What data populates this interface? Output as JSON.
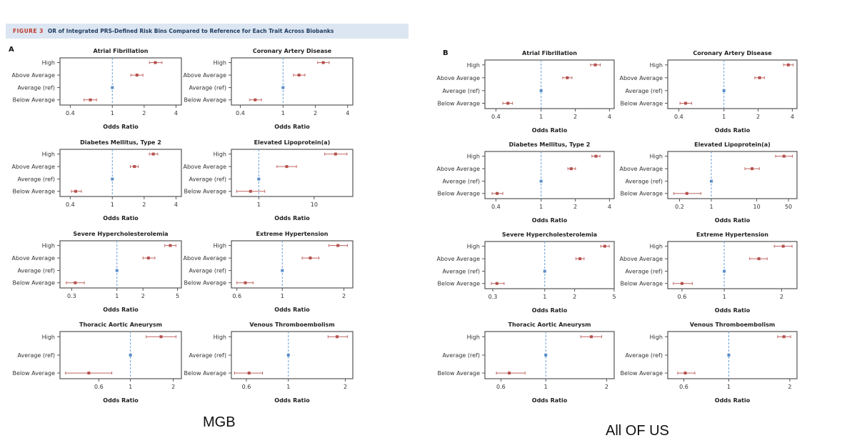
{
  "header": {
    "figure_label": "FIGURE 3",
    "title": "OR of Integrated PRS-Defined Risk Bins Compared to Reference for Each Trait Across Biobanks"
  },
  "panels": {
    "a": "A",
    "b": "B"
  },
  "captions": {
    "a": "MGB",
    "b": "All OF US"
  },
  "colors": {
    "point": "#b5504d",
    "ci": "#c06663",
    "reference": "#5b8ec9",
    "ref_line": "#6b9fd6",
    "header_bg": "#dce6f2"
  },
  "chart_data": [
    {
      "panel": "A",
      "type": "forest",
      "title": "Atrial Fibrillation",
      "xlabel": "Odds Ratio",
      "xscale": "log",
      "xlim": [
        0.32,
        4.5
      ],
      "xticks": [
        "0.4",
        "1",
        "2",
        "4"
      ],
      "rows": [
        {
          "label": "High",
          "or": 2.55,
          "lo": 2.24,
          "hi": 2.95
        },
        {
          "label": "Above Average",
          "or": 1.71,
          "lo": 1.5,
          "hi": 1.95
        },
        {
          "label": "Average (ref)",
          "or": 1
        },
        {
          "label": "Below Average",
          "or": 0.62,
          "lo": 0.54,
          "hi": 0.71
        }
      ]
    },
    {
      "panel": "A",
      "type": "forest",
      "title": "Coronary Artery Disease",
      "xlabel": "Odds Ratio",
      "xscale": "log",
      "xlim": [
        0.33,
        4.47
      ],
      "xticks": [
        "0.4",
        "1",
        "2",
        "4"
      ],
      "rows": [
        {
          "label": "High",
          "or": 2.37,
          "lo": 2.1,
          "hi": 2.69
        },
        {
          "label": "Above Average",
          "or": 1.41,
          "lo": 1.25,
          "hi": 1.6
        },
        {
          "label": "Average (ref)",
          "or": 1
        },
        {
          "label": "Below Average",
          "or": 0.55,
          "lo": 0.49,
          "hi": 0.63
        }
      ]
    },
    {
      "panel": "A",
      "type": "forest",
      "title": "Diabetes Mellitus, Type 2",
      "xlabel": "Odds Ratio",
      "xscale": "log",
      "xlim": [
        0.32,
        4.5
      ],
      "xticks": [
        "0.4",
        "1",
        "2",
        "4"
      ],
      "rows": [
        {
          "label": "High",
          "or": 2.44,
          "lo": 2.24,
          "hi": 2.69
        },
        {
          "label": "Above Average",
          "or": 1.62,
          "lo": 1.48,
          "hi": 1.76
        },
        {
          "label": "Average (ref)",
          "or": 1
        },
        {
          "label": "Below Average",
          "or": 0.45,
          "lo": 0.41,
          "hi": 0.51
        }
      ]
    },
    {
      "panel": "A",
      "type": "forest",
      "title": "Elevated Lipoprotein(a)",
      "xlabel": "Odds Ratio",
      "xscale": "log",
      "xlim": [
        0.32,
        50
      ],
      "xticks": [
        "1",
        "10"
      ],
      "rows": [
        {
          "label": "High",
          "or": 24.4,
          "lo": 15.5,
          "hi": 39.3
        },
        {
          "label": "Above Average",
          "or": 3.2,
          "lo": 2.13,
          "hi": 4.8
        },
        {
          "label": "Average (ref)",
          "or": 1
        },
        {
          "label": "Below Average",
          "or": 0.71,
          "lo": 0.4,
          "hi": 1.28
        }
      ]
    },
    {
      "panel": "A",
      "type": "forest",
      "title": "Severe Hypercholesterolemia",
      "xlabel": "Odds Ratio",
      "xscale": "log",
      "xlim": [
        0.22,
        5.55
      ],
      "xticks": [
        "0.3",
        "1",
        "2",
        "5"
      ],
      "rows": [
        {
          "label": "High",
          "or": 4.13,
          "lo": 3.57,
          "hi": 4.8
        },
        {
          "label": "Above Average",
          "or": 2.31,
          "lo": 2.0,
          "hi": 2.74
        },
        {
          "label": "Average (ref)",
          "or": 1
        },
        {
          "label": "Below Average",
          "or": 0.33,
          "lo": 0.26,
          "hi": 0.42
        }
      ]
    },
    {
      "panel": "A",
      "type": "forest",
      "title": "Extreme Hypertension",
      "xlabel": "Odds Ratio",
      "xscale": "log",
      "xlim": [
        0.564,
        2.21
      ],
      "xticks": [
        "0.6",
        "1",
        "2"
      ],
      "rows": [
        {
          "label": "High",
          "or": 1.87,
          "lo": 1.69,
          "hi": 2.08
        },
        {
          "label": "Above Average",
          "or": 1.37,
          "lo": 1.25,
          "hi": 1.51
        },
        {
          "label": "Average (ref)",
          "or": 1
        },
        {
          "label": "Below Average",
          "or": 0.66,
          "lo": 0.6,
          "hi": 0.72
        }
      ]
    },
    {
      "panel": "A",
      "type": "forest",
      "title": "Thoracic Aortic Aneurysm",
      "xlabel": "Odds Ratio",
      "xscale": "log",
      "xlim": [
        0.32,
        2.28
      ],
      "xticks": [
        "0.6",
        "1",
        "2"
      ],
      "rows": [
        {
          "label": "High",
          "or": 1.64,
          "lo": 1.29,
          "hi": 2.09
        },
        {
          "label": "Average (ref)",
          "or": 1
        },
        {
          "label": "Below Average",
          "or": 0.51,
          "lo": 0.35,
          "hi": 0.74
        }
      ]
    },
    {
      "panel": "A",
      "type": "forest",
      "title": "Venous Thromboembolism",
      "xlabel": "Odds Ratio",
      "xscale": "log",
      "xlim": [
        0.5,
        2.19
      ],
      "xticks": [
        "0.6",
        "1",
        "2"
      ],
      "rows": [
        {
          "label": "High",
          "or": 1.81,
          "lo": 1.62,
          "hi": 2.05
        },
        {
          "label": "Average (ref)",
          "or": 1
        },
        {
          "label": "Below Average",
          "or": 0.62,
          "lo": 0.52,
          "hi": 0.73
        }
      ]
    },
    {
      "panel": "B",
      "type": "forest",
      "title": "Atrial Fibrillation",
      "xlabel": "Odds Ratio",
      "xscale": "log",
      "xlim": [
        0.32,
        4.4
      ],
      "xticks": [
        "0.4",
        "1",
        "2",
        "4"
      ],
      "rows": [
        {
          "label": "High",
          "or": 3.0,
          "lo": 2.72,
          "hi": 3.32
        },
        {
          "label": "Above Average",
          "or": 1.7,
          "lo": 1.55,
          "hi": 1.87
        },
        {
          "label": "Average (ref)",
          "or": 1
        },
        {
          "label": "Below Average",
          "or": 0.51,
          "lo": 0.46,
          "hi": 0.56
        }
      ]
    },
    {
      "panel": "B",
      "type": "forest",
      "title": "Coronary Artery Disease",
      "xlabel": "Odds Ratio",
      "xscale": "log",
      "xlim": [
        0.32,
        4.4
      ],
      "xticks": [
        "0.4",
        "1",
        "2",
        "4"
      ],
      "rows": [
        {
          "label": "High",
          "or": 3.69,
          "lo": 3.35,
          "hi": 4.07
        },
        {
          "label": "Above Average",
          "or": 2.06,
          "lo": 1.87,
          "hi": 2.27
        },
        {
          "label": "Average (ref)",
          "or": 1
        },
        {
          "label": "Below Average",
          "or": 0.46,
          "lo": 0.41,
          "hi": 0.52
        }
      ]
    },
    {
      "panel": "B",
      "type": "forest",
      "title": "Diabetes Mellitus, Type 2",
      "xlabel": "Odds Ratio",
      "xscale": "log",
      "xlim": [
        0.32,
        4.4
      ],
      "xticks": [
        "0.4",
        "1",
        "2",
        "4"
      ],
      "rows": [
        {
          "label": "High",
          "or": 3.04,
          "lo": 2.8,
          "hi": 3.3
        },
        {
          "label": "Above Average",
          "or": 1.84,
          "lo": 1.72,
          "hi": 2.01
        },
        {
          "label": "Average (ref)",
          "or": 1
        },
        {
          "label": "Below Average",
          "or": 0.41,
          "lo": 0.37,
          "hi": 0.46
        }
      ]
    },
    {
      "panel": "B",
      "type": "forest",
      "title": "Elevated Lipoprotein(a)",
      "xlabel": "Odds Ratio",
      "xscale": "log",
      "xlim": [
        0.11,
        77
      ],
      "xticks": [
        "0.2",
        "1",
        "10",
        "50"
      ],
      "rows": [
        {
          "label": "High",
          "or": 39.8,
          "lo": 26,
          "hi": 61
        },
        {
          "label": "Above Average",
          "or": 7.9,
          "lo": 5.5,
          "hi": 11.4
        },
        {
          "label": "Average (ref)",
          "or": 1
        },
        {
          "label": "Below Average",
          "or": 0.29,
          "lo": 0.15,
          "hi": 0.59
        }
      ]
    },
    {
      "panel": "B",
      "type": "forest",
      "title": "Severe Hypercholesterolemia",
      "xlabel": "Odds Ratio",
      "xscale": "log",
      "xlim": [
        0.25,
        5.0
      ],
      "xticks": [
        "0.3",
        "1",
        "2",
        "5"
      ],
      "rows": [
        {
          "label": "High",
          "or": 4.02,
          "lo": 3.66,
          "hi": 4.46
        },
        {
          "label": "Above Average",
          "or": 2.26,
          "lo": 2.06,
          "hi": 2.49
        },
        {
          "label": "Average (ref)",
          "or": 1
        },
        {
          "label": "Below Average",
          "or": 0.33,
          "lo": 0.29,
          "hi": 0.39
        }
      ]
    },
    {
      "panel": "B",
      "type": "forest",
      "title": "Extreme Hypertension",
      "xlabel": "Odds Ratio",
      "xscale": "log",
      "xlim": [
        0.505,
        2.41
      ],
      "xticks": [
        "0.6",
        "1",
        "2"
      ],
      "rows": [
        {
          "label": "High",
          "or": 2.04,
          "lo": 1.83,
          "hi": 2.27
        },
        {
          "label": "Above Average",
          "or": 1.52,
          "lo": 1.36,
          "hi": 1.68
        },
        {
          "label": "Average (ref)",
          "or": 1
        },
        {
          "label": "Below Average",
          "or": 0.6,
          "lo": 0.54,
          "hi": 0.68
        }
      ]
    },
    {
      "panel": "B",
      "type": "forest",
      "title": "Thoracic Aortic Aneurysm",
      "xlabel": "Odds Ratio",
      "xscale": "log",
      "xlim": [
        0.5,
        2.18
      ],
      "xticks": [
        "0.6",
        "1",
        "2"
      ],
      "rows": [
        {
          "label": "High",
          "or": 1.68,
          "lo": 1.49,
          "hi": 1.89
        },
        {
          "label": "Average (ref)",
          "or": 1
        },
        {
          "label": "Below Average",
          "or": 0.66,
          "lo": 0.57,
          "hi": 0.79
        }
      ]
    },
    {
      "panel": "B",
      "type": "forest",
      "title": "Venous Thromboembolism",
      "xlabel": "Odds Ratio",
      "xscale": "log",
      "xlim": [
        0.5,
        2.17
      ],
      "xticks": [
        "0.6",
        "1",
        "2"
      ],
      "rows": [
        {
          "label": "High",
          "or": 1.87,
          "lo": 1.74,
          "hi": 2.02
        },
        {
          "label": "Average (ref)",
          "or": 1
        },
        {
          "label": "Below Average",
          "or": 0.61,
          "lo": 0.56,
          "hi": 0.68
        }
      ]
    }
  ]
}
